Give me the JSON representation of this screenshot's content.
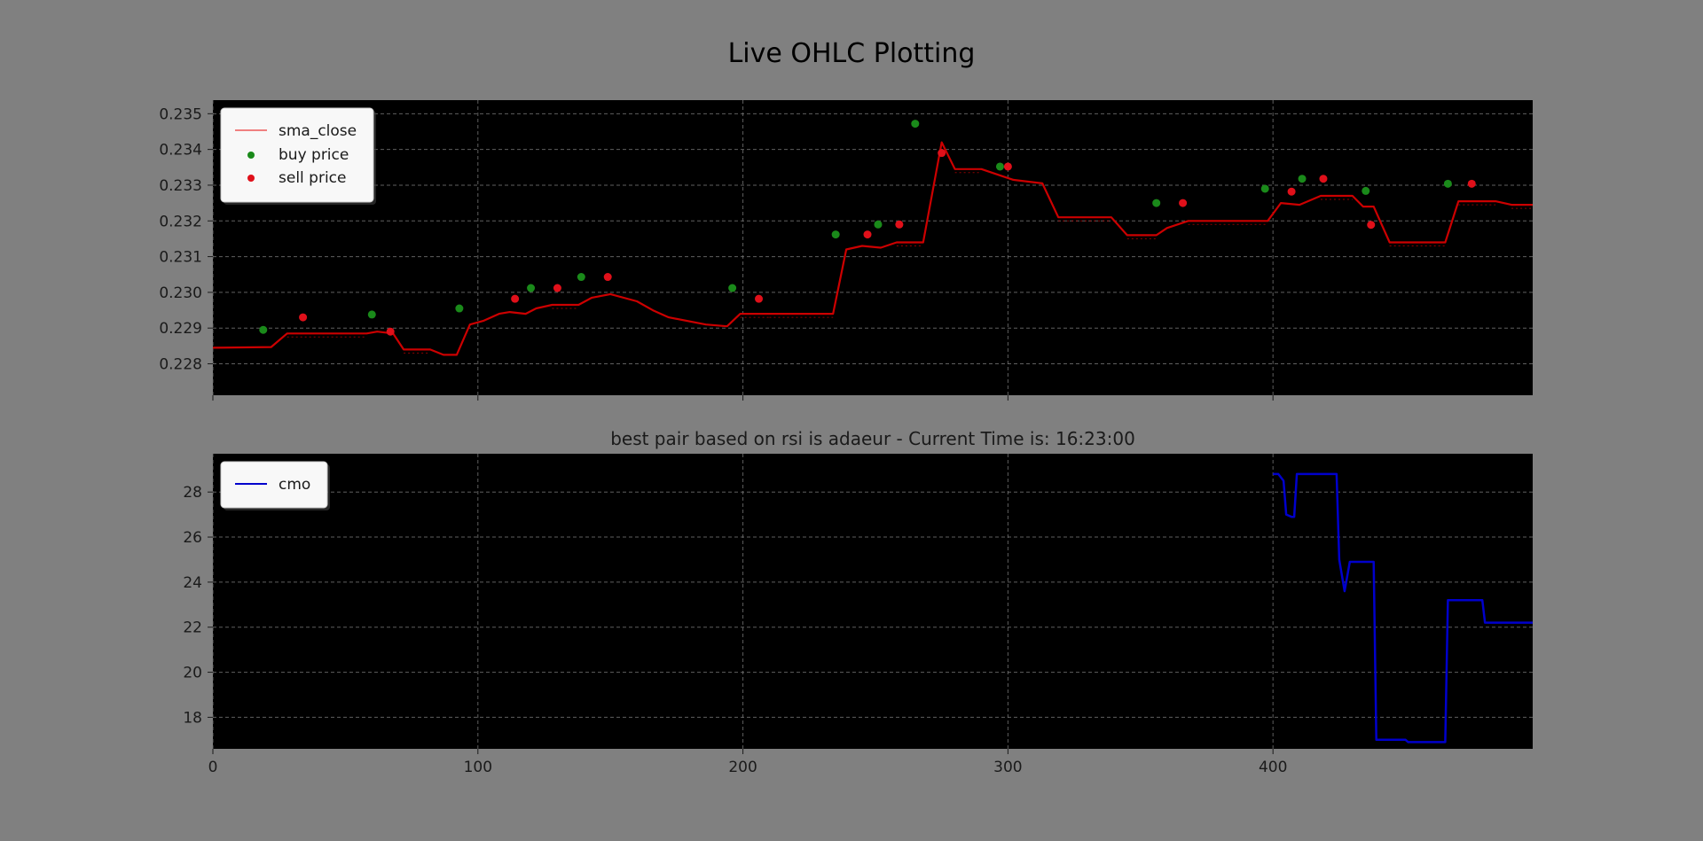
{
  "figure": {
    "title": "Live OHLC Plotting",
    "subtitle": "best pair based on rsi is adaeur - Current Time is: 16:23:00",
    "background": "#808080",
    "panel_background": "#000000"
  },
  "chart_data": [
    {
      "type": "line",
      "grid": true,
      "legend_position": "top-left",
      "xlim": [
        0,
        498
      ],
      "ylim": [
        0.22712,
        0.23538
      ],
      "x_ticks": [
        0,
        100,
        200,
        300,
        400
      ],
      "y_ticks": [
        "0.228",
        "0.229",
        "0.230",
        "0.231",
        "0.232",
        "0.233",
        "0.234",
        "0.235"
      ],
      "series": [
        {
          "name": "sma_close",
          "color": "#cc0000",
          "points": [
            [
              0,
              0.22845
            ],
            [
              22,
              0.22847
            ],
            [
              28,
              0.22885
            ],
            [
              58,
              0.22885
            ],
            [
              62,
              0.2289
            ],
            [
              68,
              0.22885
            ],
            [
              72,
              0.2284
            ],
            [
              82,
              0.2284
            ],
            [
              87,
              0.22825
            ],
            [
              92,
              0.22825
            ],
            [
              97,
              0.2291
            ],
            [
              102,
              0.2292
            ],
            [
              108,
              0.2294
            ],
            [
              112,
              0.22945
            ],
            [
              118,
              0.2294
            ],
            [
              122,
              0.22955
            ],
            [
              128,
              0.22965
            ],
            [
              138,
              0.22965
            ],
            [
              143,
              0.22985
            ],
            [
              150,
              0.22995
            ],
            [
              160,
              0.22975
            ],
            [
              166,
              0.2295
            ],
            [
              172,
              0.2293
            ],
            [
              186,
              0.2291
            ],
            [
              194,
              0.22905
            ],
            [
              199,
              0.2294
            ],
            [
              210,
              0.2294
            ],
            [
              234,
              0.2294
            ],
            [
              239,
              0.2312
            ],
            [
              245,
              0.2313
            ],
            [
              252,
              0.23125
            ],
            [
              258,
              0.2314
            ],
            [
              268,
              0.2314
            ],
            [
              275,
              0.2342
            ],
            [
              280,
              0.23345
            ],
            [
              290,
              0.23345
            ],
            [
              298,
              0.23325
            ],
            [
              302,
              0.23315
            ],
            [
              313,
              0.23305
            ],
            [
              319,
              0.2321
            ],
            [
              339,
              0.2321
            ],
            [
              345,
              0.2316
            ],
            [
              356,
              0.2316
            ],
            [
              360,
              0.2318
            ],
            [
              368,
              0.232
            ],
            [
              398,
              0.232
            ],
            [
              403,
              0.2325
            ],
            [
              410,
              0.23245
            ],
            [
              418,
              0.2327
            ],
            [
              430,
              0.2327
            ],
            [
              434,
              0.2324
            ],
            [
              438,
              0.2324
            ],
            [
              444,
              0.2314
            ],
            [
              465,
              0.2314
            ],
            [
              470,
              0.23255
            ],
            [
              484,
              0.23255
            ],
            [
              490,
              0.23245
            ],
            [
              498,
              0.23245
            ]
          ]
        },
        {
          "name": "buy price",
          "color": "#1a8a1a",
          "x": [
            19,
            60,
            93,
            120,
            139,
            196,
            235,
            251,
            265,
            297,
            356,
            397,
            411,
            435,
            466
          ],
          "y": [
            0.22895,
            0.22938,
            0.22955,
            0.23012,
            0.23043,
            0.23012,
            0.23162,
            0.2319,
            0.23472,
            0.23352,
            0.2325,
            0.2329,
            0.23318,
            0.23284,
            0.23304
          ]
        },
        {
          "name": "sell price",
          "color": "#e0101a",
          "x": [
            34,
            67,
            114,
            130,
            149,
            206,
            247,
            259,
            275,
            300,
            366,
            407,
            419,
            437,
            475
          ],
          "y": [
            0.2293,
            0.2289,
            0.22982,
            0.23012,
            0.23043,
            0.22982,
            0.23162,
            0.2319,
            0.2339,
            0.23352,
            0.2325,
            0.23282,
            0.23318,
            0.23189,
            0.23304
          ]
        }
      ]
    },
    {
      "type": "line",
      "grid": true,
      "legend_position": "top-left",
      "xlim": [
        0,
        498
      ],
      "ylim": [
        16.6,
        29.7
      ],
      "x_ticks": [
        "0",
        "100",
        "200",
        "300",
        "400"
      ],
      "y_ticks": [
        "18",
        "20",
        "22",
        "24",
        "26",
        "28"
      ],
      "series": [
        {
          "name": "cmo",
          "color": "#0000cc",
          "points": [
            [
              400,
              28.8
            ],
            [
              402,
              28.8
            ],
            [
              404,
              28.5
            ],
            [
              405,
              27.0
            ],
            [
              407,
              26.9
            ],
            [
              408,
              26.9
            ],
            [
              409,
              28.8
            ],
            [
              424,
              28.8
            ],
            [
              425,
              25.0
            ],
            [
              427,
              23.6
            ],
            [
              429,
              24.9
            ],
            [
              438,
              24.9
            ],
            [
              439,
              17.0
            ],
            [
              450,
              17.0
            ],
            [
              451,
              16.9
            ],
            [
              465,
              16.9
            ],
            [
              466,
              23.2
            ],
            [
              479,
              23.2
            ],
            [
              480,
              22.2
            ],
            [
              498,
              22.2
            ]
          ]
        }
      ]
    }
  ]
}
